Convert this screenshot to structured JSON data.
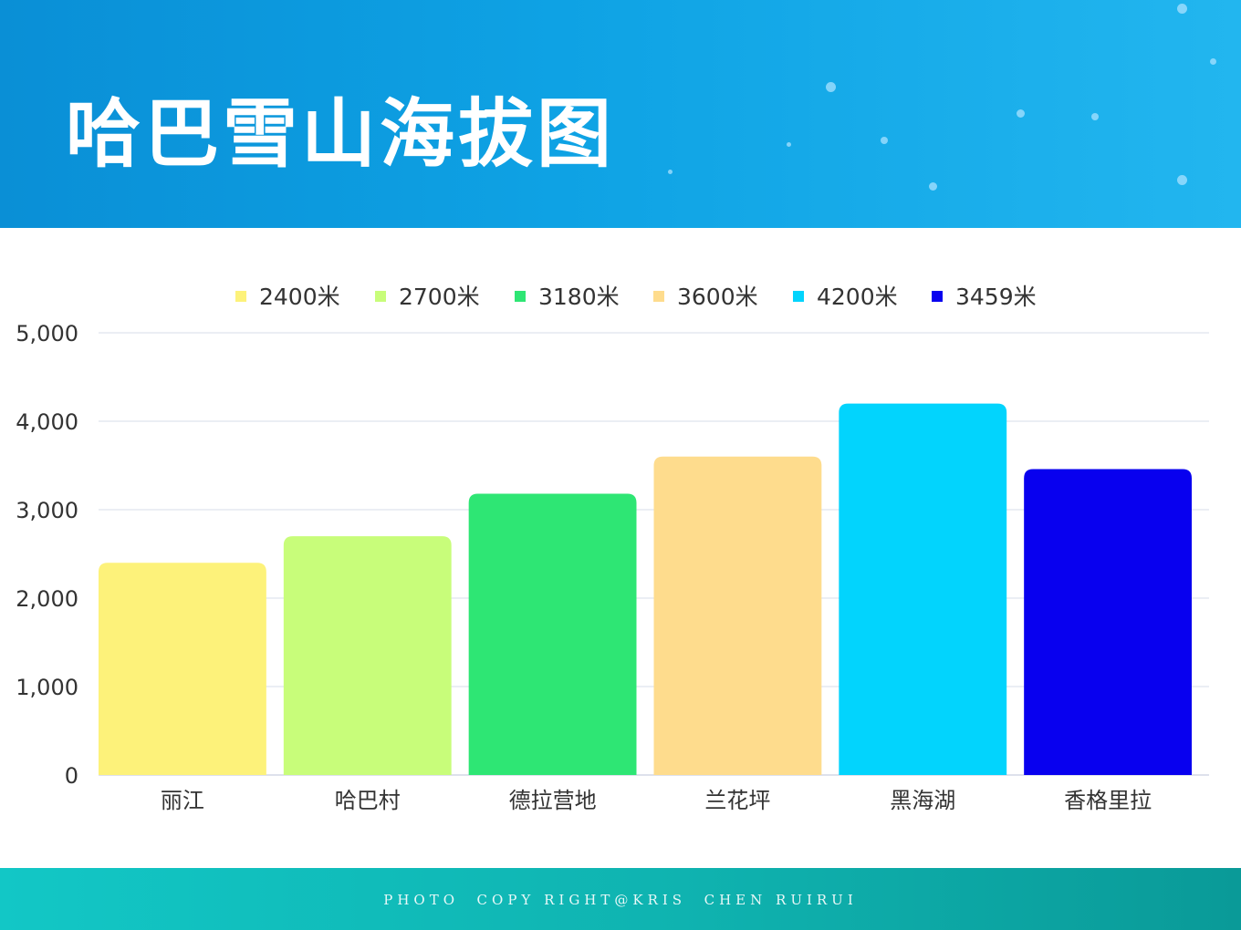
{
  "header": {
    "title": "哈巴雪山海拔图",
    "background_colors": [
      "#0a8fd6",
      "#22b6ef"
    ]
  },
  "chart_data": {
    "type": "bar",
    "categories": [
      "丽江",
      "哈巴村",
      "德拉营地",
      "兰花坪",
      "黑海湖",
      "香格里拉"
    ],
    "values": [
      2400,
      2700,
      3180,
      3600,
      4200,
      3459
    ],
    "legend": [
      "2400米",
      "2700米",
      "3180米",
      "3600米",
      "4200米",
      "3459米"
    ],
    "colors": [
      "#fdf27a",
      "#c8fd7a",
      "#2ee674",
      "#fedc8d",
      "#02d4fd",
      "#0800ef"
    ],
    "yticks": [
      "0",
      "1,000",
      "2,000",
      "3,000",
      "4,000",
      "5,000"
    ],
    "ylim": [
      0,
      5000
    ],
    "legend_position": "top",
    "grid": true
  },
  "footer": {
    "text": "PHOTO  COPY RIGHT@KRIS  CHEN RUIRUI",
    "background_colors": [
      "#12c7c6",
      "#0a9a98"
    ]
  }
}
